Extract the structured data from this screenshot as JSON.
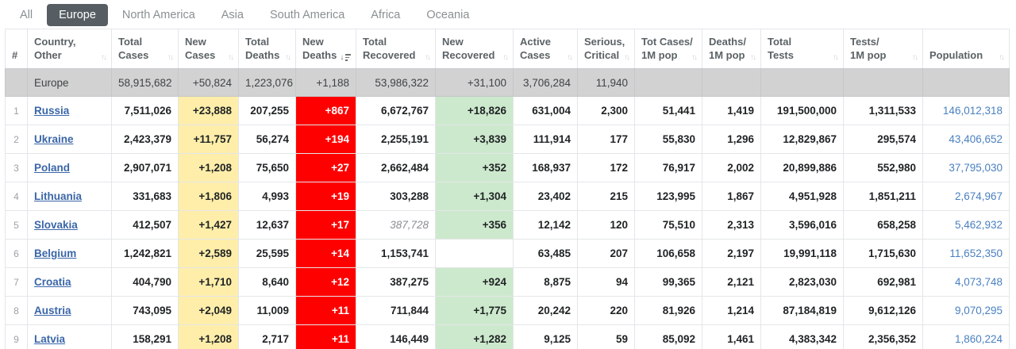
{
  "tabs": [
    {
      "label": "All",
      "active": false
    },
    {
      "label": "Europe",
      "active": true
    },
    {
      "label": "North America",
      "active": false
    },
    {
      "label": "Asia",
      "active": false
    },
    {
      "label": "South America",
      "active": false
    },
    {
      "label": "Africa",
      "active": false
    },
    {
      "label": "Oceania",
      "active": false
    }
  ],
  "colors": {
    "tab_active_bg": "#565E63",
    "new_cases_bg": "#FFEEAA",
    "new_deaths_bg": "#FF0000",
    "new_recovered_bg": "#CDE9CD",
    "total_row_bg": "#D2D2D2",
    "link_blue": "#3A66A8",
    "pop_blue": "#4A80C0"
  },
  "table": {
    "columns": [
      {
        "key": "rank",
        "line1": "#",
        "line2": "",
        "sortable": false,
        "sorted": ""
      },
      {
        "key": "country",
        "line1": "Country,",
        "line2": "Other",
        "sortable": true,
        "sorted": ""
      },
      {
        "key": "total_cases",
        "line1": "Total",
        "line2": "Cases",
        "sortable": true,
        "sorted": ""
      },
      {
        "key": "new_cases",
        "line1": "New",
        "line2": "Cases",
        "sortable": true,
        "sorted": ""
      },
      {
        "key": "total_deaths",
        "line1": "Total",
        "line2": "Deaths",
        "sortable": true,
        "sorted": ""
      },
      {
        "key": "new_deaths",
        "line1": "New",
        "line2": "Deaths",
        "sortable": true,
        "sorted": "desc"
      },
      {
        "key": "total_recovered",
        "line1": "Total",
        "line2": "Recovered",
        "sortable": true,
        "sorted": ""
      },
      {
        "key": "new_recovered",
        "line1": "New",
        "line2": "Recovered",
        "sortable": true,
        "sorted": ""
      },
      {
        "key": "active_cases",
        "line1": "Active",
        "line2": "Cases",
        "sortable": true,
        "sorted": ""
      },
      {
        "key": "serious_critical",
        "line1": "Serious,",
        "line2": "Critical",
        "sortable": true,
        "sorted": ""
      },
      {
        "key": "cases_per_1m",
        "line1": "Tot Cases/",
        "line2": "1M pop",
        "sortable": true,
        "sorted": ""
      },
      {
        "key": "deaths_per_1m",
        "line1": "Deaths/",
        "line2": "1M pop",
        "sortable": true,
        "sorted": ""
      },
      {
        "key": "total_tests",
        "line1": "Total",
        "line2": "Tests",
        "sortable": true,
        "sorted": ""
      },
      {
        "key": "tests_per_1m",
        "line1": "Tests/",
        "line2": "1M pop",
        "sortable": true,
        "sorted": ""
      },
      {
        "key": "population",
        "line1": "Population",
        "line2": "",
        "sortable": true,
        "sorted": ""
      }
    ],
    "totals": {
      "rank": "",
      "country": "Europe",
      "total_cases": "58,915,682",
      "new_cases": "+50,824",
      "total_deaths": "1,223,076",
      "new_deaths": "+1,188",
      "total_recovered": "53,986,322",
      "new_recovered": "+31,100",
      "active_cases": "3,706,284",
      "serious_critical": "11,940",
      "cases_per_1m": "",
      "deaths_per_1m": "",
      "total_tests": "",
      "tests_per_1m": "",
      "population": ""
    },
    "rows": [
      {
        "rank": "1",
        "country": "Russia",
        "total_cases": "7,511,026",
        "new_cases": "+23,888",
        "total_deaths": "207,255",
        "new_deaths": "+867",
        "total_recovered": "6,672,767",
        "total_recovered_estimated": false,
        "new_recovered": "+18,826",
        "active_cases": "631,004",
        "serious_critical": "2,300",
        "cases_per_1m": "51,441",
        "deaths_per_1m": "1,419",
        "total_tests": "191,500,000",
        "tests_per_1m": "1,311,533",
        "population": "146,012,318"
      },
      {
        "rank": "2",
        "country": "Ukraine",
        "total_cases": "2,423,379",
        "new_cases": "+11,757",
        "total_deaths": "56,274",
        "new_deaths": "+194",
        "total_recovered": "2,255,191",
        "total_recovered_estimated": false,
        "new_recovered": "+3,839",
        "active_cases": "111,914",
        "serious_critical": "177",
        "cases_per_1m": "55,830",
        "deaths_per_1m": "1,296",
        "total_tests": "12,829,867",
        "tests_per_1m": "295,574",
        "population": "43,406,652"
      },
      {
        "rank": "3",
        "country": "Poland",
        "total_cases": "2,907,071",
        "new_cases": "+1,208",
        "total_deaths": "75,650",
        "new_deaths": "+27",
        "total_recovered": "2,662,484",
        "total_recovered_estimated": false,
        "new_recovered": "+352",
        "active_cases": "168,937",
        "serious_critical": "172",
        "cases_per_1m": "76,917",
        "deaths_per_1m": "2,002",
        "total_tests": "20,899,886",
        "tests_per_1m": "552,980",
        "population": "37,795,030"
      },
      {
        "rank": "4",
        "country": "Lithuania",
        "total_cases": "331,683",
        "new_cases": "+1,806",
        "total_deaths": "4,993",
        "new_deaths": "+19",
        "total_recovered": "303,288",
        "total_recovered_estimated": false,
        "new_recovered": "+1,304",
        "active_cases": "23,402",
        "serious_critical": "215",
        "cases_per_1m": "123,995",
        "deaths_per_1m": "1,867",
        "total_tests": "4,951,928",
        "tests_per_1m": "1,851,211",
        "population": "2,674,967"
      },
      {
        "rank": "5",
        "country": "Slovakia",
        "total_cases": "412,507",
        "new_cases": "+1,427",
        "total_deaths": "12,637",
        "new_deaths": "+17",
        "total_recovered": "387,728",
        "total_recovered_estimated": true,
        "new_recovered": "+356",
        "active_cases": "12,142",
        "serious_critical": "120",
        "cases_per_1m": "75,510",
        "deaths_per_1m": "2,313",
        "total_tests": "3,596,016",
        "tests_per_1m": "658,258",
        "population": "5,462,932"
      },
      {
        "rank": "6",
        "country": "Belgium",
        "total_cases": "1,242,821",
        "new_cases": "+2,589",
        "total_deaths": "25,595",
        "new_deaths": "+14",
        "total_recovered": "1,153,741",
        "total_recovered_estimated": false,
        "new_recovered": "",
        "active_cases": "63,485",
        "serious_critical": "207",
        "cases_per_1m": "106,658",
        "deaths_per_1m": "2,197",
        "total_tests": "19,991,118",
        "tests_per_1m": "1,715,630",
        "population": "11,652,350"
      },
      {
        "rank": "7",
        "country": "Croatia",
        "total_cases": "404,790",
        "new_cases": "+1,710",
        "total_deaths": "8,640",
        "new_deaths": "+12",
        "total_recovered": "387,275",
        "total_recovered_estimated": false,
        "new_recovered": "+924",
        "active_cases": "8,875",
        "serious_critical": "94",
        "cases_per_1m": "99,365",
        "deaths_per_1m": "2,121",
        "total_tests": "2,823,030",
        "tests_per_1m": "692,981",
        "population": "4,073,748"
      },
      {
        "rank": "8",
        "country": "Austria",
        "total_cases": "743,095",
        "new_cases": "+2,049",
        "total_deaths": "11,009",
        "new_deaths": "+11",
        "total_recovered": "711,844",
        "total_recovered_estimated": false,
        "new_recovered": "+1,775",
        "active_cases": "20,242",
        "serious_critical": "220",
        "cases_per_1m": "81,926",
        "deaths_per_1m": "1,214",
        "total_tests": "87,184,819",
        "tests_per_1m": "9,612,126",
        "population": "9,070,295"
      },
      {
        "rank": "9",
        "country": "Latvia",
        "total_cases": "158,291",
        "new_cases": "+1,208",
        "total_deaths": "2,717",
        "new_deaths": "+11",
        "total_recovered": "146,449",
        "total_recovered_estimated": false,
        "new_recovered": "+1,282",
        "active_cases": "9,125",
        "serious_critical": "59",
        "cases_per_1m": "85,092",
        "deaths_per_1m": "1,461",
        "total_tests": "4,383,342",
        "tests_per_1m": "2,356,352",
        "population": "1,860,224"
      }
    ]
  }
}
